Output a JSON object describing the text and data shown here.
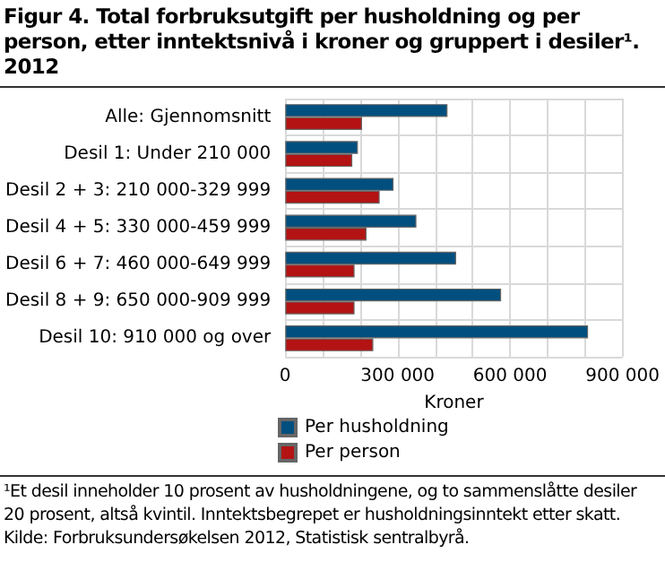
{
  "chart_data": {
    "type": "bar",
    "orientation": "horizontal",
    "title": "Figur 4. Total forbruksutgift per husholdning og per person, etter inntektsnivå i kroner og gruppert i desiler¹. 2012",
    "categories": [
      "Alle: Gjennomsnitt",
      "Desil 1: Under 210 000",
      "Desil 2 + 3: 210 000-329 999",
      "Desil 4 + 5: 330 000-459 999",
      "Desil 6 + 7: 460 000-649 999",
      "Desil 8 + 9: 650 000-909 999",
      "Desil 10: 910 000 og over"
    ],
    "series": [
      {
        "name": "Per husholdning",
        "color": "#004f7f",
        "values": [
          433000,
          194000,
          289000,
          350000,
          456000,
          576000,
          808000
        ]
      },
      {
        "name": "Per person",
        "color": "#b31313",
        "values": [
          205000,
          179000,
          252000,
          217000,
          185000,
          185000,
          235000
        ]
      }
    ],
    "xlabel": "Kroner",
    "xlim": [
      0,
      900000
    ],
    "xticks": [
      {
        "value": 0,
        "label": "0"
      },
      {
        "value": 100000,
        "label": null
      },
      {
        "value": 200000,
        "label": null
      },
      {
        "value": 300000,
        "label": "300 000"
      },
      {
        "value": 400000,
        "label": null
      },
      {
        "value": 500000,
        "label": null
      },
      {
        "value": 600000,
        "label": "600 000"
      },
      {
        "value": 700000,
        "label": null
      },
      {
        "value": 800000,
        "label": null
      },
      {
        "value": 900000,
        "label": "900 000"
      }
    ],
    "grid": true,
    "legend": "bottom",
    "annotations": [
      "¹Et desil inneholder 10 prosent av husholdningene, og to sammenslåtte desiler 20 prosent, altså kvintil. Inntektsbegrepet er husholdningsinntekt etter skatt.",
      "Kilde: Forbruksundersøkelsen 2012, Statistisk sentralbyrå."
    ]
  }
}
